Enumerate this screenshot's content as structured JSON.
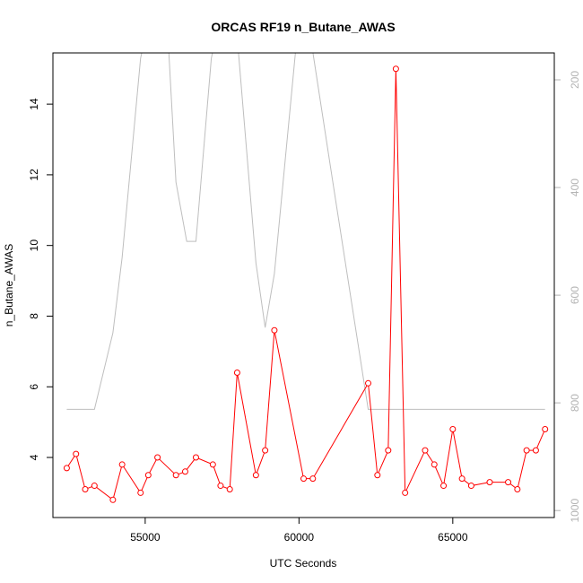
{
  "chart_data": {
    "type": "line",
    "title": "ORCAS RF19 n_Butane_AWAS",
    "xlabel": "UTC Seconds",
    "ylabel": "n_Butane_AWAS",
    "xlim": [
      52000,
      68300
    ],
    "ylim": [
      2.3,
      15.45
    ],
    "x_ticks": [
      55000,
      60000,
      65000
    ],
    "y_ticks": [
      4,
      6,
      8,
      10,
      12,
      14
    ],
    "y2_ticks": [
      200,
      400,
      600,
      800,
      1000
    ],
    "y2lim": [
      1013,
      150
    ],
    "grid": false,
    "series": [
      {
        "color": "#ff0000",
        "marker": "open-circle",
        "x": [
          52450,
          52750,
          53050,
          53350,
          53950,
          54250,
          54850,
          55100,
          55400,
          56000,
          56300,
          56650,
          57200,
          57450,
          57750,
          57990,
          58600,
          58900,
          59200,
          60150,
          60450,
          62250,
          62550,
          62900,
          63150,
          63450,
          64100,
          64400,
          64700,
          65000,
          65300,
          65600,
          66200,
          66800,
          67100,
          67400,
          67700,
          68000
        ],
        "y": [
          3.7,
          4.1,
          3.1,
          3.2,
          2.8,
          3.8,
          3.0,
          3.5,
          4.0,
          3.5,
          3.6,
          4.0,
          3.8,
          3.2,
          3.1,
          6.4,
          3.5,
          4.2,
          7.6,
          3.4,
          3.4,
          6.1,
          3.5,
          4.2,
          15.0,
          3.0,
          4.2,
          3.8,
          3.2,
          4.8,
          3.4,
          3.2,
          3.3,
          3.3,
          3.1,
          4.2,
          4.2,
          4.8
        ]
      },
      {
        "axis": "right",
        "color": "#bebebe",
        "x": [
          52450,
          53350,
          53950,
          54250,
          54850,
          55150,
          55750,
          56000,
          56350,
          56650,
          57150,
          57450,
          57990,
          58600,
          58900,
          59200,
          59900,
          60400,
          61100,
          62250,
          68000
        ],
        "y": [
          812,
          812,
          670,
          530,
          160,
          80,
          130,
          390,
          500,
          500,
          160,
          80,
          120,
          540,
          660,
          560,
          140,
          130,
          390,
          812,
          812
        ]
      }
    ]
  }
}
